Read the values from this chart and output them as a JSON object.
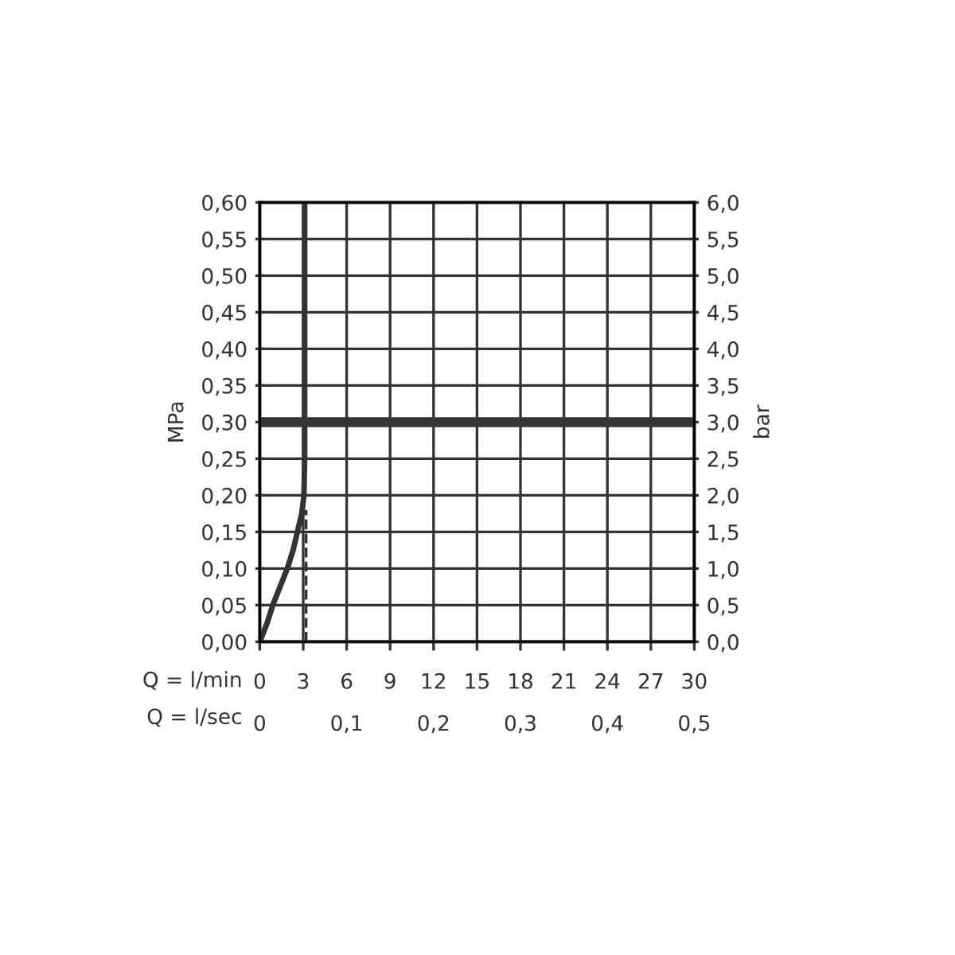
{
  "chart_data": {
    "type": "line",
    "xlabel": "Q = l/min",
    "x2label": "Q = l/sec",
    "ylabel": "MPa",
    "y2label": "bar",
    "series": [
      {
        "color": "#333333",
        "line_style": "solid",
        "x": [
          0,
          0.5,
          0.9,
          1.4,
          1.9,
          2.3,
          2.6,
          2.9,
          3.05,
          3.1,
          3.1
        ],
        "values": [
          0,
          0.025,
          0.05,
          0.075,
          0.1,
          0.125,
          0.15,
          0.175,
          0.2,
          0.25,
          0.6
        ]
      },
      {
        "color": "#333333",
        "line_style": "dashed",
        "x": [
          3.2,
          3.2
        ],
        "values": [
          0,
          0.18
        ]
      }
    ],
    "xlim": [
      0,
      30
    ],
    "xticks": [
      0,
      3,
      6,
      9,
      12,
      15,
      18,
      21,
      24,
      27,
      30
    ],
    "x2lim": [
      0,
      0.5
    ],
    "x2ticks": [
      0,
      {
        "value": 0.1,
        "label": "0,1"
      },
      {
        "value": 0.2,
        "label": "0,2"
      },
      {
        "value": 0.3,
        "label": "0,3"
      },
      {
        "value": 0.4,
        "label": "0,4"
      },
      {
        "value": 0.5,
        "label": "0,5"
      }
    ],
    "ylim": [
      0,
      0.6
    ],
    "yticks": [
      {
        "value": 0,
        "label": "0,00"
      },
      {
        "value": 0.05,
        "label": "0,05"
      },
      {
        "value": 0.1,
        "label": "0,10"
      },
      {
        "value": 0.15,
        "label": "0,15"
      },
      {
        "value": 0.2,
        "label": "0,20"
      },
      {
        "value": 0.25,
        "label": "0,25"
      },
      {
        "value": 0.3,
        "label": "0,30"
      },
      {
        "value": 0.35,
        "label": "0,35"
      },
      {
        "value": 0.4,
        "label": "0,40"
      },
      {
        "value": 0.45,
        "label": "0,45"
      },
      {
        "value": 0.5,
        "label": "0,50"
      },
      {
        "value": 0.55,
        "label": "0,55"
      },
      {
        "value": 0.6,
        "label": "0,60"
      }
    ],
    "y2lim": [
      0,
      6
    ],
    "y2ticks": [
      {
        "value": 0,
        "label": "0,0"
      },
      {
        "value": 0.5,
        "label": "0,5"
      },
      {
        "value": 1,
        "label": "1,0"
      },
      {
        "value": 1.5,
        "label": "1,5"
      },
      {
        "value": 2,
        "label": "2,0"
      },
      {
        "value": 2.5,
        "label": "2,5"
      },
      {
        "value": 3,
        "label": "3,0"
      },
      {
        "value": 3.5,
        "label": "3,5"
      },
      {
        "value": 4,
        "label": "4,0"
      },
      {
        "value": 4.5,
        "label": "4,5"
      },
      {
        "value": 5,
        "label": "5,0"
      },
      {
        "value": 5.5,
        "label": "5,5"
      },
      {
        "value": 6,
        "label": "6,0"
      }
    ],
    "ref_lines": [
      {
        "axis": "y",
        "value": 0.3,
        "color": "#333333",
        "line_style": "solid"
      }
    ],
    "grid": true,
    "marker": "none"
  }
}
